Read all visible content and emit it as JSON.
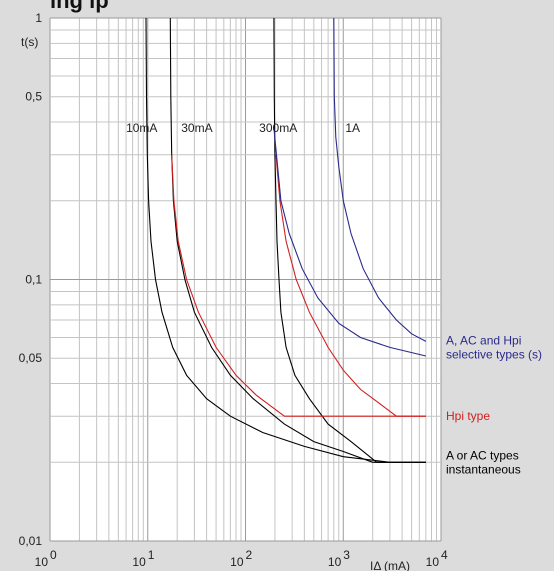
{
  "title_fragment": "ing                      ip",
  "chart_data": {
    "type": "line",
    "x_scale": "log",
    "y_scale": "log",
    "xlim": [
      1,
      10000
    ],
    "ylim": [
      0.01,
      1
    ],
    "x_ticks": [
      {
        "value": 1,
        "base": "10",
        "exp": "0"
      },
      {
        "value": 10,
        "base": "10",
        "exp": "1"
      },
      {
        "value": 100,
        "base": "10",
        "exp": "2"
      },
      {
        "value": 1000,
        "base": "10",
        "exp": "3"
      },
      {
        "value": 10000,
        "base": "10",
        "exp": "4"
      }
    ],
    "y_ticks": [
      {
        "value": 1,
        "label": "1"
      },
      {
        "value": 0.5,
        "label": "0,5"
      },
      {
        "value": 0.1,
        "label": "0,1"
      },
      {
        "value": 0.05,
        "label": "0,05"
      },
      {
        "value": 0.01,
        "label": "0,01"
      }
    ],
    "ylabel": "t(s)",
    "xlabel": "IΔ (mA)",
    "grid": true,
    "curve_labels": [
      {
        "text": "10mA",
        "x": 6,
        "y": 0.38
      },
      {
        "text": "30mA",
        "x": 22,
        "y": 0.38
      },
      {
        "text": "300mA",
        "x": 138,
        "y": 0.38
      },
      {
        "text": "1A",
        "x": 1050,
        "y": 0.38
      }
    ],
    "series": [
      {
        "name": "A or AC types instantaneous",
        "color": "#000000",
        "curves": [
          {
            "rating": "10mA",
            "points": [
              [
                9.6,
                1
              ],
              [
                9.7,
                0.5
              ],
              [
                9.9,
                0.3
              ],
              [
                10.2,
                0.2
              ],
              [
                10.8,
                0.14
              ],
              [
                12,
                0.1
              ],
              [
                14,
                0.075
              ],
              [
                18,
                0.055
              ],
              [
                25,
                0.043
              ],
              [
                40,
                0.035
              ],
              [
                70,
                0.03
              ],
              [
                150,
                0.026
              ],
              [
                400,
                0.023
              ],
              [
                1000,
                0.021
              ],
              [
                3000,
                0.02
              ],
              [
                7000,
                0.02
              ]
            ]
          },
          {
            "rating": "30mA",
            "points": [
              [
                17,
                1
              ],
              [
                17.2,
                0.5
              ],
              [
                17.6,
                0.3
              ],
              [
                18.3,
                0.2
              ],
              [
                20,
                0.14
              ],
              [
                24,
                0.1
              ],
              [
                30,
                0.075
              ],
              [
                45,
                0.055
              ],
              [
                70,
                0.043
              ],
              [
                120,
                0.035
              ],
              [
                250,
                0.028
              ],
              [
                500,
                0.024
              ],
              [
                1000,
                0.022
              ],
              [
                2000,
                0.02
              ],
              [
                7000,
                0.02
              ]
            ]
          },
          {
            "rating": "300mA",
            "points": [
              [
                195,
                1
              ],
              [
                197,
                0.5
              ],
              [
                200,
                0.3
              ],
              [
                205,
                0.2
              ],
              [
                210,
                0.14
              ],
              [
                220,
                0.1
              ],
              [
                230,
                0.075
              ],
              [
                260,
                0.055
              ],
              [
                320,
                0.043
              ],
              [
                450,
                0.035
              ],
              [
                700,
                0.028
              ],
              [
                1200,
                0.024
              ],
              [
                2200,
                0.02
              ],
              [
                7000,
                0.02
              ]
            ]
          }
        ]
      },
      {
        "name": "Hpi type",
        "color": "#d21f1f",
        "curves": [
          {
            "rating": "30mA",
            "points": [
              [
                17.6,
                0.3
              ],
              [
                18.5,
                0.2
              ],
              [
                20.5,
                0.14
              ],
              [
                25,
                0.1
              ],
              [
                33,
                0.075
              ],
              [
                50,
                0.055
              ],
              [
                80,
                0.043
              ],
              [
                130,
                0.036
              ],
              [
                250,
                0.03
              ],
              [
                400,
                0.03
              ],
              [
                7000,
                0.03
              ]
            ]
          },
          {
            "rating": "300mA",
            "points": [
              [
                205,
                0.3
              ],
              [
                225,
                0.2
              ],
              [
                260,
                0.14
              ],
              [
                330,
                0.1
              ],
              [
                450,
                0.075
              ],
              [
                700,
                0.055
              ],
              [
                1000,
                0.045
              ],
              [
                1500,
                0.038
              ],
              [
                2500,
                0.033
              ],
              [
                3500,
                0.03
              ],
              [
                7000,
                0.03
              ]
            ]
          }
        ]
      },
      {
        "name": "A, AC and Hpi selective types (s)",
        "color": "#2a2a8c",
        "curves": [
          {
            "rating": "300mA",
            "points": [
              [
                195,
                0.38
              ],
              [
                230,
                0.2
              ],
              [
                280,
                0.15
              ],
              [
                380,
                0.11
              ],
              [
                550,
                0.085
              ],
              [
                900,
                0.068
              ],
              [
                1500,
                0.06
              ],
              [
                3000,
                0.055
              ],
              [
                7000,
                0.051
              ]
            ]
          },
          {
            "rating": "1A",
            "points": [
              [
                800,
                1
              ],
              [
                810,
                0.5
              ],
              [
                840,
                0.35
              ],
              [
                900,
                0.27
              ],
              [
                1000,
                0.2
              ],
              [
                1200,
                0.15
              ],
              [
                1600,
                0.11
              ],
              [
                2300,
                0.085
              ],
              [
                3500,
                0.07
              ],
              [
                5000,
                0.062
              ],
              [
                7000,
                0.058
              ]
            ]
          }
        ]
      }
    ],
    "legend": [
      {
        "lines": [
          "A, AC and Hpi",
          "selective types (s)"
        ],
        "color": "#2a2a8c",
        "anchor_x": 7000,
        "anchor_y": 0.055
      },
      {
        "lines": [
          "Hpi type"
        ],
        "color": "#d21f1f",
        "anchor_x": 7000,
        "anchor_y": 0.03
      },
      {
        "lines": [
          "A or AC types",
          "instantaneous"
        ],
        "color": "#000000",
        "anchor_x": 7000,
        "anchor_y": 0.02
      }
    ]
  }
}
